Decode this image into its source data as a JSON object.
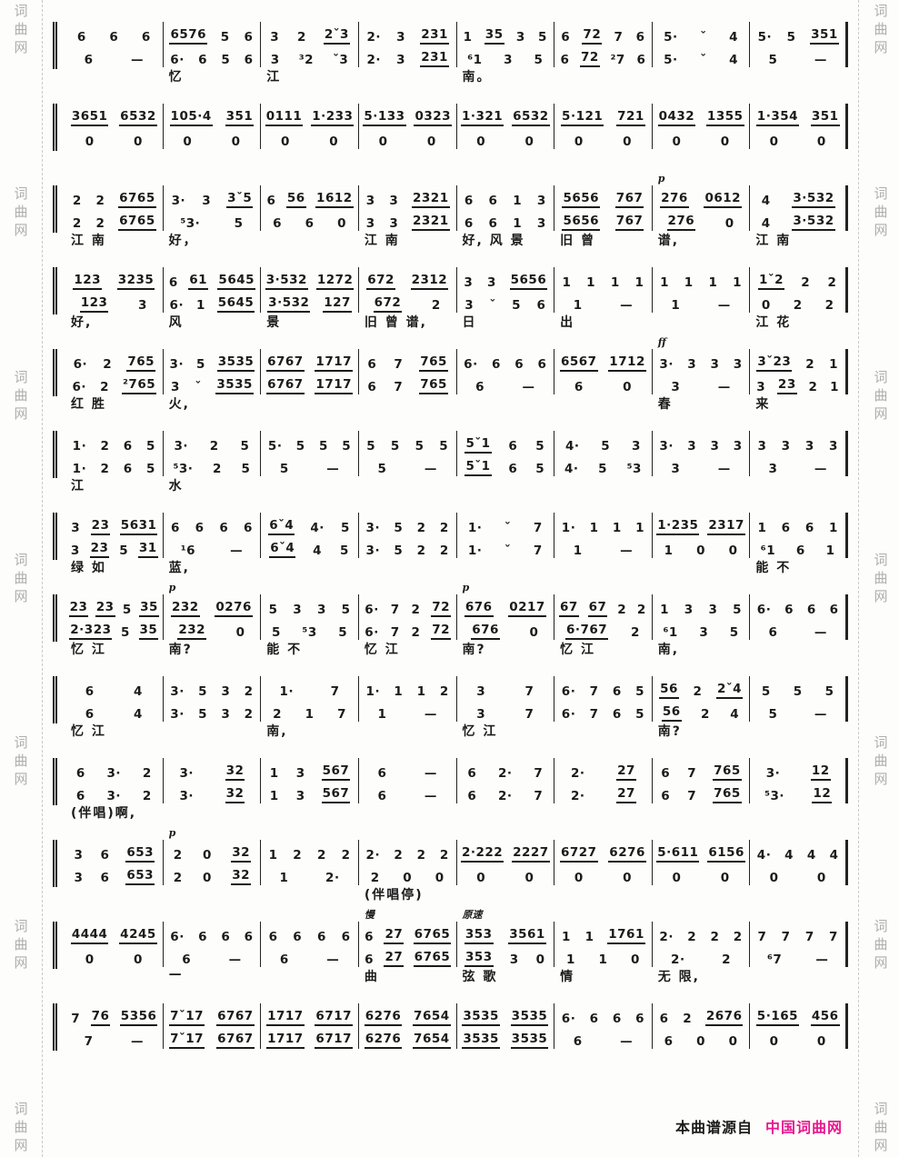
{
  "colors": {
    "ink": "#1b1b1b",
    "watermark": "#aeaeae",
    "brand": "#e81990",
    "background": "#fdfdfb"
  },
  "watermark": {
    "chars": [
      "词",
      "曲",
      "网"
    ],
    "repeats": 7
  },
  "footer": {
    "prefix": "本曲谱源自",
    "brand": "中国词曲网"
  },
  "systems": [
    {
      "measures": [
        {
          "t": "6 6 6",
          "b": "6 —",
          "ly": ""
        },
        {
          "t": "6576 5 6",
          "b": "6· 6 5 6",
          "ly": "忆"
        },
        {
          "t": "3 2 2ˇ3",
          "b": "3 ³2 ˇ3",
          "ly": "江"
        },
        {
          "t": "2· 3 231",
          "b": "2· 3 231",
          "ly": ""
        },
        {
          "t": "1 35 3 5",
          "b": "⁶1 3 5",
          "ly": "南。"
        },
        {
          "t": "6 72 7 6",
          "b": "6 72 ²7 6",
          "ly": ""
        },
        {
          "t": "5· ˇ 4",
          "b": "5· ˇ 4",
          "ly": ""
        },
        {
          "t": "5· 5 351",
          "b": "5 —",
          "ly": ""
        }
      ]
    },
    {
      "measures": [
        {
          "t": "3651 6532",
          "b": "0 0",
          "ly": ""
        },
        {
          "t": "105·4 351",
          "b": "0 0",
          "ly": ""
        },
        {
          "t": "0111 1·233",
          "b": "0 0",
          "ly": ""
        },
        {
          "t": "5·133 0323",
          "b": "0 0",
          "ly": ""
        },
        {
          "t": "1·321 6532",
          "b": "0 0",
          "ly": ""
        },
        {
          "t": "5·121 721",
          "b": "0 0",
          "ly": ""
        },
        {
          "t": "0432 1355",
          "b": "0 0",
          "ly": ""
        },
        {
          "t": "1·354 351",
          "b": "0 0",
          "ly": ""
        }
      ]
    },
    {
      "measures": [
        {
          "t": "2 2 6765",
          "b": "2 2 6765",
          "ly": "江 南"
        },
        {
          "t": "3· 3 3ˇ5",
          "b": "⁵3· 5",
          "ly": "好，"
        },
        {
          "t": "6 56 1612",
          "b": "6 6 0",
          "ly": ""
        },
        {
          "t": "3 3 2321",
          "b": "3 3 2321",
          "ly": "江 南"
        },
        {
          "t": "6 6 1 3",
          "b": "6 6 1 3",
          "ly": "好, 风 景"
        },
        {
          "t": "5656 767",
          "b": "5656 767",
          "ly": "旧 曾"
        },
        {
          "t": "276 0612",
          "b": "276 0",
          "ly": "谱,",
          "an": "p"
        },
        {
          "t": "4 3·532",
          "b": "4 3·532",
          "ly": "江 南"
        }
      ]
    },
    {
      "measures": [
        {
          "t": "123 3235",
          "b": "123 3",
          "ly": "好,"
        },
        {
          "t": "6 61 5645",
          "b": "6· 1 5645",
          "ly": "风"
        },
        {
          "t": "3·532 1272",
          "b": "3·532 127",
          "ly": "景"
        },
        {
          "t": "672 2312",
          "b": "672 2",
          "ly": "旧 曾 谱,"
        },
        {
          "t": "3 3 5656",
          "b": "3 ˇ 5 6",
          "ly": "日"
        },
        {
          "t": "1 1 1 1",
          "b": "1 —",
          "ly": "出"
        },
        {
          "t": "1 1 1 1",
          "b": "1 —",
          "ly": ""
        },
        {
          "t": "1ˇ2 2 2",
          "b": "0 2 2",
          "ly": "江 花"
        }
      ]
    },
    {
      "measures": [
        {
          "t": "6· 2 765",
          "b": "6· 2 ²765",
          "ly": "红 胜"
        },
        {
          "t": "3· 5 3535",
          "b": "3 ˇ 3535",
          "ly": "火,"
        },
        {
          "t": "6767 1717",
          "b": "6767 1717",
          "ly": ""
        },
        {
          "t": "6 7 765",
          "b": "6 7 765",
          "ly": ""
        },
        {
          "t": "6· 6 6 6",
          "b": "6 —",
          "ly": ""
        },
        {
          "t": "6567 1712",
          "b": "6 0",
          "ly": ""
        },
        {
          "t": "3· 3 3 3",
          "b": "3 —",
          "ly": "春",
          "an": "ff"
        },
        {
          "t": "3ˇ23 2 1",
          "b": "3 23 2 1",
          "ly": "来"
        }
      ]
    },
    {
      "measures": [
        {
          "t": "1· 2 6 5",
          "b": "1· 2 6 5",
          "ly": "江"
        },
        {
          "t": "3· 2 5",
          "b": "⁵3· 2 5",
          "ly": "水"
        },
        {
          "t": "5· 5 5 5",
          "b": "5 —",
          "ly": ""
        },
        {
          "t": "5 5 5 5",
          "b": "5 —",
          "ly": ""
        },
        {
          "t": "5ˇ1 6 5",
          "b": "5ˇ1 6 5",
          "ly": ""
        },
        {
          "t": "4· 5 3",
          "b": "4· 5 ⁵3",
          "ly": ""
        },
        {
          "t": "3· 3 3 3",
          "b": "3 —",
          "ly": ""
        },
        {
          "t": "3 3 3 3",
          "b": "3 —",
          "ly": ""
        }
      ]
    },
    {
      "measures": [
        {
          "t": "3 23 5631",
          "b": "3 23 5 31",
          "ly": "绿 如"
        },
        {
          "t": "6 6 6 6",
          "b": "¹6 —",
          "ly": "蓝,"
        },
        {
          "t": "6ˇ4 4· 5",
          "b": "6ˇ4 4 5",
          "ly": ""
        },
        {
          "t": "3· 5 2 2",
          "b": "3· 5 2 2",
          "ly": ""
        },
        {
          "t": "1· ˇ 7",
          "b": "1· ˇ 7",
          "ly": ""
        },
        {
          "t": "1· 1 1 1",
          "b": "1 —",
          "ly": ""
        },
        {
          "t": "1·235 2317",
          "b": "1 0 0",
          "ly": ""
        },
        {
          "t": "1 6 6 1",
          "b": "⁶1 6 1",
          "ly": "能 不"
        }
      ]
    },
    {
      "measures": [
        {
          "t": "23 23 5 35",
          "b": "2·323 5 35",
          "ly": "忆 江"
        },
        {
          "t": "232 0276",
          "b": "232 0",
          "ly": "南?",
          "an": "p"
        },
        {
          "t": "5 3 3 5",
          "b": "5 ⁵3 5",
          "ly": "能 不"
        },
        {
          "t": "6· 7 2 72",
          "b": "6· 7 2 72",
          "ly": "忆 江"
        },
        {
          "t": "676 0217",
          "b": "676 0",
          "ly": "南?",
          "an": "p"
        },
        {
          "t": "67 67 2 2",
          "b": "6·767 2",
          "ly": "忆 江"
        },
        {
          "t": "1 3 3 5",
          "b": "⁶1 3 5",
          "ly": "南,"
        },
        {
          "t": "6· 6 6 6",
          "b": "6 —",
          "ly": ""
        }
      ]
    },
    {
      "measures": [
        {
          "t": "6 4",
          "b": "6 4",
          "ly": "忆 江"
        },
        {
          "t": "3· 5 3 2",
          "b": "3· 5 3 2",
          "ly": ""
        },
        {
          "t": "1· 7",
          "b": "2 1 7",
          "ly": "南,"
        },
        {
          "t": "1· 1 1 2",
          "b": "1 —",
          "ly": ""
        },
        {
          "t": "3 7",
          "b": "3 7",
          "ly": "忆 江"
        },
        {
          "t": "6· 7 6 5",
          "b": "6· 7 6 5",
          "ly": ""
        },
        {
          "t": "56 2 2ˇ4",
          "b": "56 2 4",
          "ly": "南?"
        },
        {
          "t": "5 5 5",
          "b": "5 —",
          "ly": ""
        }
      ]
    },
    {
      "measures": [
        {
          "t": "6 3· 2",
          "b": "6 3· 2",
          "ly": "(伴唱)啊,"
        },
        {
          "t": "3· 32",
          "b": "3· 32",
          "ly": ""
        },
        {
          "t": "1 3 567",
          "b": "1 3 567",
          "ly": ""
        },
        {
          "t": "6 —",
          "b": "6 —",
          "ly": ""
        },
        {
          "t": "6 2· 7",
          "b": "6 2· 7",
          "ly": ""
        },
        {
          "t": "2· 27",
          "b": "2· 27",
          "ly": ""
        },
        {
          "t": "6 7 765",
          "b": "6 7 765",
          "ly": ""
        },
        {
          "t": "3· 12",
          "b": "⁵3· 12",
          "ly": ""
        }
      ]
    },
    {
      "measures": [
        {
          "t": "3 6 653",
          "b": "3 6 653",
          "ly": ""
        },
        {
          "t": "2 0 32",
          "b": "2 0 32",
          "ly": "",
          "an": "p"
        },
        {
          "t": "1 2 2 2",
          "b": "1 2·",
          "ly": ""
        },
        {
          "t": "2· 2 2 2",
          "b": "2 0 0",
          "ly": "(伴唱停)"
        },
        {
          "t": "2·222 2227",
          "b": "0 0",
          "ly": ""
        },
        {
          "t": "6727 6276",
          "b": "0 0",
          "ly": ""
        },
        {
          "t": "5·611 6156",
          "b": "0 0",
          "ly": ""
        },
        {
          "t": "4· 4 4 4",
          "b": "0 0",
          "ly": ""
        }
      ]
    },
    {
      "measures": [
        {
          "t": "4444 4245",
          "b": "0 0",
          "ly": ""
        },
        {
          "t": "6· 6 6 6",
          "b": "6 —",
          "ly": "—"
        },
        {
          "t": "6 6 6 6",
          "b": "6 —",
          "ly": ""
        },
        {
          "t": "6 27 6765",
          "b": "6 27 6765",
          "ly": "曲",
          "an": "慢"
        },
        {
          "t": "353 3561",
          "b": "353 3 0",
          "ly": "弦 歌",
          "an": "原速"
        },
        {
          "t": "1 1 1761",
          "b": "1 1 0",
          "ly": "情"
        },
        {
          "t": "2· 2 2 2",
          "b": "2· 2",
          "ly": "无 限,"
        },
        {
          "t": "7 7 7 7",
          "b": "⁶7 —",
          "ly": ""
        }
      ]
    },
    {
      "measures": [
        {
          "t": "7 76 5356",
          "b": "7 —",
          "ly": ""
        },
        {
          "t": "7ˇ17 6767",
          "b": "7ˇ17 6767",
          "ly": ""
        },
        {
          "t": "1717 6717",
          "b": "1717 6717",
          "ly": ""
        },
        {
          "t": "6276 7654",
          "b": "6276 7654",
          "ly": ""
        },
        {
          "t": "3535 3535",
          "b": "3535 3535",
          "ly": ""
        },
        {
          "t": "6· 6 6 6",
          "b": "6 —",
          "ly": ""
        },
        {
          "t": "6 2 2676",
          "b": "6 0 0",
          "ly": ""
        },
        {
          "t": "5·165 456",
          "b": "0 0",
          "ly": ""
        }
      ]
    }
  ]
}
